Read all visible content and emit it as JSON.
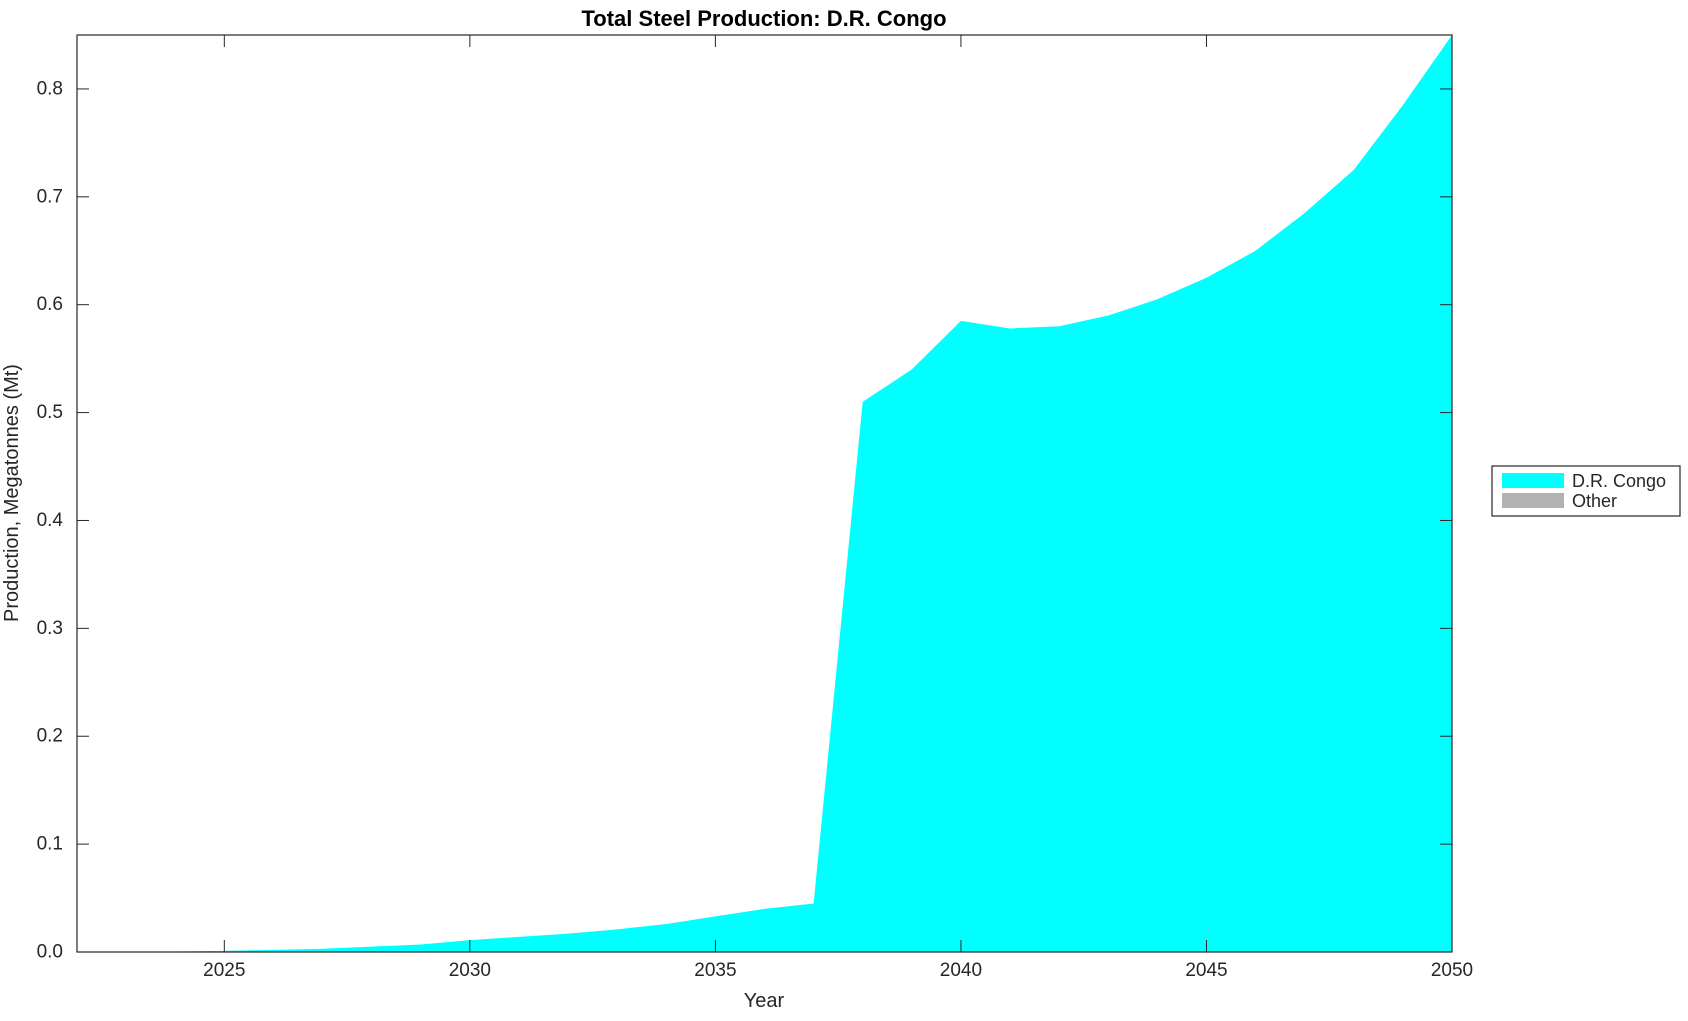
{
  "chart_data": {
    "type": "area",
    "title": "Total Steel Production: D.R. Congo",
    "xlabel": "Year",
    "ylabel": "Production, Megatonnes (Mt)",
    "xlim": [
      2022,
      2050
    ],
    "ylim": [
      0,
      0.85
    ],
    "x_ticks": [
      2025,
      2030,
      2035,
      2040,
      2045,
      2050
    ],
    "y_ticks": [
      0.0,
      0.1,
      0.2,
      0.3,
      0.4,
      0.5,
      0.6,
      0.7,
      0.8
    ],
    "grid": false,
    "background": "#FFFFFF",
    "axis_color": "#262626",
    "x": [
      2022,
      2023,
      2024,
      2025,
      2026,
      2027,
      2028,
      2029,
      2030,
      2031,
      2032,
      2033,
      2034,
      2035,
      2036,
      2037,
      2038,
      2039,
      2040,
      2041,
      2042,
      2043,
      2044,
      2045,
      2046,
      2047,
      2048,
      2049,
      2050
    ],
    "series": [
      {
        "name": "D.R. Congo",
        "color": "#00FFFF",
        "values": [
          0,
          0,
          0.0005,
          0.001,
          0.002,
          0.003,
          0.005,
          0.007,
          0.011,
          0.014,
          0.017,
          0.021,
          0.026,
          0.033,
          0.04,
          0.045,
          0.51,
          0.54,
          0.585,
          0.578,
          0.58,
          0.59,
          0.605,
          0.625,
          0.65,
          0.685,
          0.725,
          0.785,
          0.85
        ]
      },
      {
        "name": "Other",
        "color": "#B2B2B2",
        "values": [
          0,
          0,
          0,
          0,
          0,
          0,
          0,
          0,
          0,
          0,
          0,
          0,
          0,
          0,
          0,
          0,
          0,
          0,
          0,
          0,
          0,
          0,
          0,
          0,
          0,
          0,
          0,
          0,
          0
        ]
      }
    ],
    "legend": {
      "position": "right-outside",
      "entries": [
        "D.R. Congo",
        "Other"
      ]
    }
  }
}
